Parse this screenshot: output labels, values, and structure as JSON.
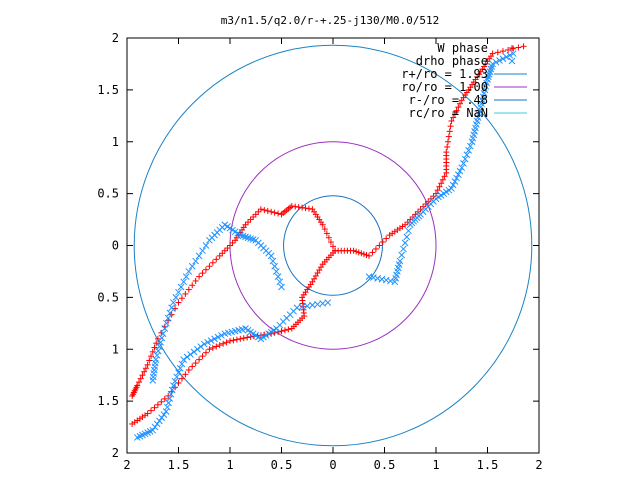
{
  "chart_data": {
    "type": "scatter",
    "title": "m3/n1.5/q2.0/r-+.25-j130/M0.0/512",
    "xlim": [
      -2,
      2
    ],
    "ylim": [
      -2,
      2
    ],
    "x_tick_labels": [
      "2",
      "1.5",
      "1",
      "0.5",
      "0",
      "0.5",
      "1",
      "1.5",
      "2"
    ],
    "y_tick_labels": [
      "2",
      "1.5",
      "1",
      "0.5",
      "0",
      "0.5",
      "1",
      "1.5",
      "2"
    ],
    "grid": false,
    "legend_position": "top-right",
    "series": [
      {
        "name": "W phase",
        "marker": "+",
        "color": "#ff0000",
        "arms": [
          [
            [
              0.02,
              -0.05
            ],
            [
              -0.1,
              -0.18
            ],
            [
              -0.2,
              -0.35
            ],
            [
              -0.3,
              -0.5
            ],
            [
              -0.28,
              -0.68
            ],
            [
              -0.4,
              -0.8
            ],
            [
              -0.6,
              -0.85
            ],
            [
              -0.8,
              -0.88
            ],
            [
              -1.0,
              -0.92
            ],
            [
              -1.2,
              -1.0
            ],
            [
              -1.4,
              -1.2
            ],
            [
              -1.6,
              -1.45
            ],
            [
              -1.8,
              -1.62
            ],
            [
              -1.95,
              -1.72
            ]
          ],
          [
            [
              0.02,
              -0.05
            ],
            [
              0.2,
              -0.05
            ],
            [
              0.35,
              -0.1
            ],
            [
              0.55,
              0.1
            ],
            [
              0.7,
              0.2
            ],
            [
              0.85,
              0.35
            ],
            [
              1.0,
              0.5
            ],
            [
              1.1,
              0.7
            ],
            [
              1.1,
              0.9
            ],
            [
              1.15,
              1.2
            ],
            [
              1.25,
              1.4
            ],
            [
              1.35,
              1.55
            ],
            [
              1.45,
              1.7
            ],
            [
              1.55,
              1.85
            ],
            [
              1.85,
              1.92
            ]
          ],
          [
            [
              0.02,
              -0.05
            ],
            [
              -0.1,
              0.2
            ],
            [
              -0.2,
              0.35
            ],
            [
              -0.4,
              0.38
            ],
            [
              -0.5,
              0.3
            ],
            [
              -0.7,
              0.35
            ],
            [
              -0.85,
              0.2
            ],
            [
              -0.95,
              0.05
            ],
            [
              -1.1,
              -0.1
            ],
            [
              -1.3,
              -0.3
            ],
            [
              -1.5,
              -0.55
            ],
            [
              -1.7,
              -0.9
            ],
            [
              -1.8,
              -1.15
            ],
            [
              -1.9,
              -1.35
            ],
            [
              -1.95,
              -1.45
            ]
          ]
        ]
      },
      {
        "name": "drho phase",
        "marker": "x",
        "color": "#1e90ff",
        "arms": [
          [
            [
              -0.05,
              -0.55
            ],
            [
              -0.35,
              -0.6
            ],
            [
              -0.55,
              -0.8
            ],
            [
              -0.7,
              -0.9
            ],
            [
              -0.85,
              -0.8
            ],
            [
              -1.05,
              -0.85
            ],
            [
              -1.25,
              -0.95
            ],
            [
              -1.45,
              -1.1
            ],
            [
              -1.55,
              -1.35
            ],
            [
              -1.62,
              -1.6
            ],
            [
              -1.75,
              -1.78
            ],
            [
              -1.9,
              -1.85
            ]
          ],
          [
            [
              0.35,
              -0.3
            ],
            [
              0.6,
              -0.35
            ],
            [
              0.65,
              -0.15
            ],
            [
              0.75,
              0.2
            ],
            [
              0.85,
              0.3
            ],
            [
              1.0,
              0.45
            ],
            [
              1.15,
              0.55
            ],
            [
              1.25,
              0.75
            ],
            [
              1.35,
              1.0
            ],
            [
              1.4,
              1.2
            ],
            [
              1.45,
              1.4
            ],
            [
              1.5,
              1.6
            ],
            [
              1.55,
              1.75
            ],
            [
              1.75,
              1.85
            ]
          ],
          [
            [
              -0.5,
              -0.4
            ],
            [
              -0.6,
              -0.1
            ],
            [
              -0.75,
              0.05
            ],
            [
              -0.9,
              0.1
            ],
            [
              -1.05,
              0.2
            ],
            [
              -1.2,
              0.05
            ],
            [
              -1.4,
              -0.25
            ],
            [
              -1.55,
              -0.55
            ],
            [
              -1.65,
              -0.85
            ],
            [
              -1.72,
              -1.1
            ],
            [
              -1.75,
              -1.3
            ]
          ]
        ]
      },
      {
        "name": "r+/ro = 1.93",
        "type": "circle",
        "radius": 1.93,
        "color": "#1b82c6"
      },
      {
        "name": "ro/ro = 1.00",
        "type": "circle",
        "radius": 1.0,
        "color": "#9b30c0"
      },
      {
        "name": "r-/ro = .48",
        "type": "circle",
        "radius": 0.48,
        "color": "#1b72c0"
      },
      {
        "name": "rc/ro = NaN",
        "type": "circle",
        "radius": null,
        "color": "#40c8e0"
      }
    ]
  }
}
